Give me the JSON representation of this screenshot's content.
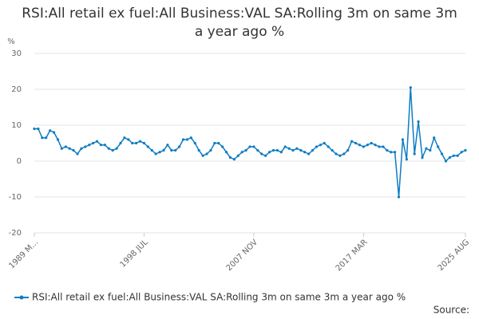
{
  "chart_data": {
    "type": "line",
    "title": "RSI:All retail ex fuel:All Business:VAL SA:Rolling 3m on same 3m a year ago %",
    "y_label": "%",
    "source": "Source:",
    "categories": [
      "1989 M...",
      null,
      null,
      null,
      null,
      null,
      null,
      null,
      null,
      null,
      null,
      null,
      null,
      null,
      null,
      null,
      null,
      null,
      null,
      null,
      null,
      null,
      null,
      null,
      null,
      null,
      null,
      null,
      "1998 JUL",
      null,
      null,
      null,
      null,
      null,
      null,
      null,
      null,
      null,
      null,
      null,
      null,
      null,
      null,
      null,
      null,
      null,
      null,
      null,
      null,
      null,
      null,
      null,
      null,
      null,
      null,
      null,
      "2007 NOV",
      null,
      null,
      null,
      null,
      null,
      null,
      null,
      null,
      null,
      null,
      null,
      null,
      null,
      null,
      null,
      null,
      null,
      null,
      null,
      null,
      null,
      null,
      null,
      null,
      null,
      null,
      null,
      "2017 MAR",
      null,
      null,
      null,
      null,
      null,
      null,
      null,
      null,
      null,
      null,
      null,
      null,
      null,
      null,
      null,
      null,
      null,
      null,
      null,
      null,
      null,
      null,
      null,
      null,
      null,
      "2025 AUG"
    ],
    "series": [
      {
        "name": "RSI:All retail ex fuel:All Business:VAL SA:Rolling 3m on same 3m a year ago %",
        "color": "#0e7dc2",
        "values": [
          9,
          9,
          6.5,
          6.5,
          8.5,
          8,
          6,
          3.5,
          4,
          3.5,
          3,
          2,
          3.5,
          4,
          4.5,
          5,
          5.5,
          4.5,
          4.5,
          3.5,
          3,
          3.5,
          5,
          6.5,
          6,
          5,
          5,
          5.5,
          5,
          4,
          3,
          2,
          2.5,
          3,
          4.5,
          3,
          3,
          4,
          6,
          6,
          6.5,
          5,
          3,
          1.5,
          2,
          3,
          5,
          5,
          4,
          2.5,
          1,
          0.5,
          1.5,
          2.5,
          3,
          4,
          4,
          3,
          2,
          1.5,
          2.5,
          3,
          3,
          2.5,
          4,
          3.5,
          3,
          3.5,
          3,
          2.5,
          2,
          3,
          4,
          4.5,
          5,
          4,
          3,
          2,
          1.5,
          2,
          3,
          5.5,
          5,
          4.5,
          4,
          4.5,
          5,
          4.5,
          4,
          4,
          3,
          2.5,
          2.5,
          -10,
          6,
          0.5,
          20.5,
          2,
          11,
          1,
          3.5,
          3,
          6.5,
          4,
          2,
          0,
          1,
          1.5,
          1.5,
          2.5,
          3
        ]
      }
    ],
    "ylim": [
      -20,
      30
    ],
    "yticks": [
      -20,
      -10,
      0,
      10,
      20,
      30
    ],
    "grid": true
  }
}
